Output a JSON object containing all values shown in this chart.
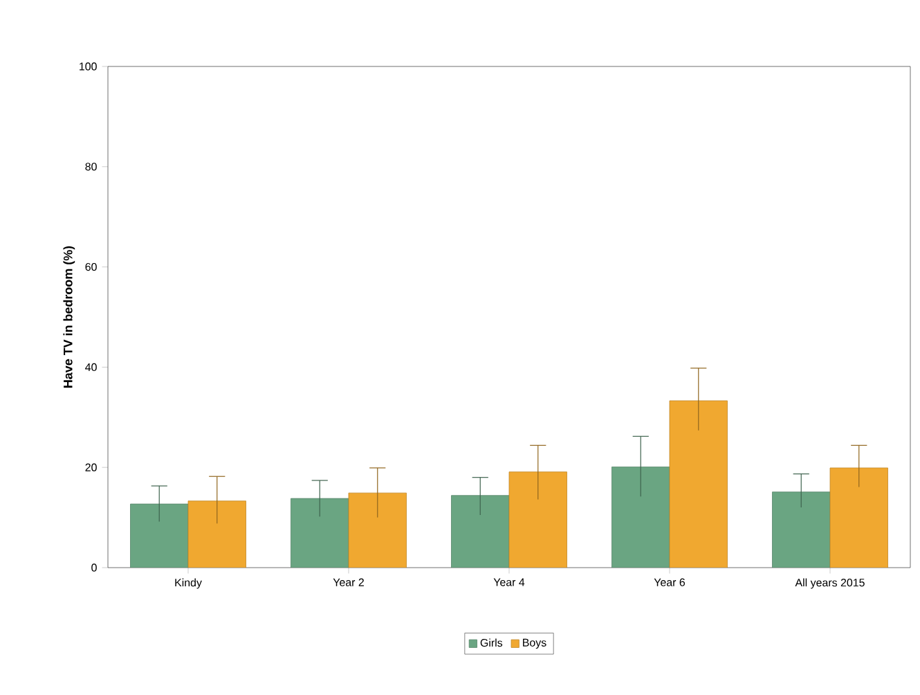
{
  "chart_data": {
    "type": "bar",
    "ylabel": "Have TV in bedroom (%)",
    "categories": [
      "Kindy",
      "Year 2",
      "Year 4",
      "Year 6",
      "All years 2015"
    ],
    "series": [
      {
        "name": "Girls",
        "color": "#6aa582",
        "values": [
          12.7,
          13.8,
          14.4,
          20.1,
          15.1
        ],
        "errors": [
          [
            9.2,
            16.3
          ],
          [
            10.2,
            17.4
          ],
          [
            10.5,
            18.0
          ],
          [
            14.2,
            26.2
          ],
          [
            12.0,
            18.7
          ]
        ]
      },
      {
        "name": "Boys",
        "color": "#f0a830",
        "values": [
          13.3,
          14.9,
          19.1,
          33.3,
          19.9
        ],
        "errors": [
          [
            8.8,
            18.2
          ],
          [
            10.0,
            19.9
          ],
          [
            13.6,
            24.4
          ],
          [
            27.4,
            39.8
          ],
          [
            16.1,
            24.4
          ]
        ]
      }
    ],
    "ylim": [
      0,
      100
    ],
    "yticks": [
      0,
      20,
      40,
      60,
      80,
      100
    ],
    "legend": "bottom",
    "grid": false
  }
}
